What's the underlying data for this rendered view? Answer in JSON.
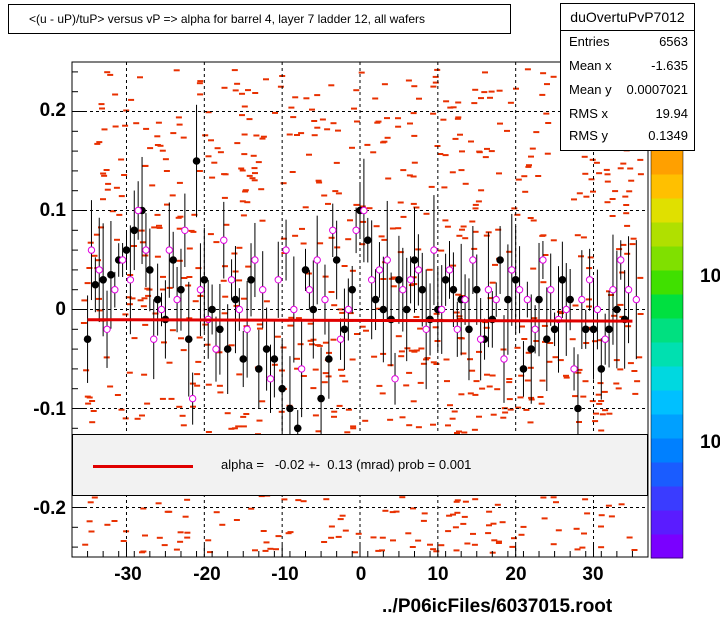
{
  "title": "<(u - uP)/tuP> versus   vP => alpha for barrel 4, layer 7 ladder 12, all wafers",
  "stats": {
    "name": "duOvertuPvP7012",
    "entries_label": "Entries",
    "entries": "6563",
    "meanx_label": "Mean x",
    "meanx": "-1.635",
    "meany_label": "Mean y",
    "meany": "0.0007021",
    "rmsx_label": "RMS x",
    "rmsx": "19.94",
    "rmsy_label": "RMS y",
    "rmsy": "0.1349"
  },
  "fit_text": "alpha =   -0.02 +-  0.13 (mrad) prob = 0.001",
  "footer": "../P06icFiles/6037015.root",
  "zaxis_labels": [
    "10",
    "10"
  ],
  "colors": {
    "fit_line": "#e00000",
    "hist": "#e83000",
    "profile1": "#000000",
    "profile2": "#e000e0"
  },
  "chart_data": {
    "type": "scatter",
    "xlim": [
      -37,
      37
    ],
    "ylim": [
      -0.25,
      0.25
    ],
    "xticks": [
      "-30",
      "-20",
      "-10",
      "0",
      "10",
      "20",
      "30"
    ],
    "xtick_values": [
      -30,
      -20,
      -10,
      0,
      10,
      20,
      30
    ],
    "yticks": [
      "0.2",
      "0.1",
      "0",
      "-0.1",
      "-0.2"
    ],
    "ytick_values": [
      0.2,
      0.1,
      0,
      -0.1,
      -0.2
    ],
    "grid": true,
    "fit": {
      "slope_mrad": -0.02,
      "intercept": -0.011
    },
    "series": [
      {
        "marker": "filled-circle",
        "x": [
          -35,
          -34,
          -33,
          -32,
          -31,
          -30,
          -29,
          -28,
          -27,
          -26,
          -25,
          -24,
          -23,
          -22,
          -21,
          -20,
          -19,
          -18,
          -17,
          -16,
          -15,
          -14,
          -13,
          -12,
          -11,
          -10,
          -9,
          -8,
          -7,
          -6,
          -5,
          -4,
          -3,
          -2,
          -1,
          0,
          1,
          2,
          3,
          4,
          5,
          6,
          7,
          8,
          9,
          10,
          11,
          12,
          13,
          14,
          15,
          16,
          17,
          18,
          19,
          20,
          21,
          22,
          23,
          24,
          25,
          26,
          27,
          28,
          29,
          30,
          31,
          32,
          33,
          34
        ],
        "y": [
          -0.03,
          0.025,
          0.03,
          0.035,
          0.05,
          0.06,
          0.08,
          0.1,
          0.04,
          0.01,
          -0.01,
          0.05,
          0.02,
          -0.03,
          0.15,
          0.03,
          0.0,
          -0.02,
          -0.04,
          0.01,
          -0.05,
          0.03,
          -0.06,
          -0.04,
          -0.05,
          -0.08,
          -0.1,
          -0.12,
          0.04,
          0.0,
          -0.09,
          -0.05,
          0.05,
          -0.02,
          0.02,
          0.1,
          0.07,
          0.01,
          0.0,
          -0.01,
          0.03,
          0.0,
          0.05,
          0.02,
          -0.01,
          0.0,
          0.03,
          0.02,
          0.01,
          -0.02,
          0.02,
          -0.03,
          -0.01,
          0.05,
          0.01,
          0.03,
          -0.06,
          -0.04,
          0.01,
          -0.03,
          -0.02,
          0.03,
          0.01,
          -0.1,
          -0.02,
          -0.02,
          -0.06,
          -0.02,
          0.0,
          -0.01
        ]
      },
      {
        "marker": "open-circle",
        "x": [
          -34.5,
          -33.5,
          -32.5,
          -31.5,
          -30.5,
          -29.5,
          -28.5,
          -27.5,
          -26.5,
          -25.5,
          -24.5,
          -23.5,
          -22.5,
          -21.5,
          -20.5,
          -19.5,
          -18.5,
          -17.5,
          -16.5,
          -15.5,
          -14.5,
          -13.5,
          -12.5,
          -11.5,
          -10.5,
          -9.5,
          -8.5,
          -7.5,
          -6.5,
          -5.5,
          -4.5,
          -3.5,
          -2.5,
          -1.5,
          -0.5,
          0.5,
          1.5,
          2.5,
          3.5,
          4.5,
          5.5,
          6.5,
          7.5,
          8.5,
          9.5,
          10.5,
          11.5,
          12.5,
          13.5,
          14.5,
          15.5,
          16.5,
          17.5,
          18.5,
          19.5,
          20.5,
          21.5,
          22.5,
          23.5,
          24.5,
          25.5,
          26.5,
          27.5,
          28.5,
          29.5,
          30.5,
          31.5,
          32.5,
          33.5,
          34.5,
          35.5
        ],
        "y": [
          0.06,
          0.04,
          -0.02,
          0.02,
          0.05,
          0.03,
          0.1,
          0.06,
          -0.03,
          0.0,
          0.06,
          0.01,
          0.08,
          -0.09,
          0.02,
          -0.01,
          -0.04,
          0.07,
          0.03,
          0.0,
          -0.02,
          0.05,
          0.02,
          -0.07,
          0.03,
          0.06,
          0.0,
          -0.06,
          0.02,
          0.05,
          0.01,
          0.08,
          -0.03,
          0.0,
          0.08,
          0.1,
          0.03,
          0.04,
          0.05,
          -0.07,
          0.02,
          0.03,
          0.04,
          -0.02,
          0.06,
          0.0,
          0.04,
          -0.02,
          0.01,
          0.05,
          -0.03,
          0.02,
          0.01,
          -0.05,
          0.04,
          0.02,
          0.01,
          -0.02,
          0.05,
          0.02,
          -0.01,
          0.0,
          -0.06,
          0.01,
          0.03,
          0.0,
          -0.03,
          0.02,
          0.05,
          0.02,
          0.01
        ]
      }
    ]
  }
}
